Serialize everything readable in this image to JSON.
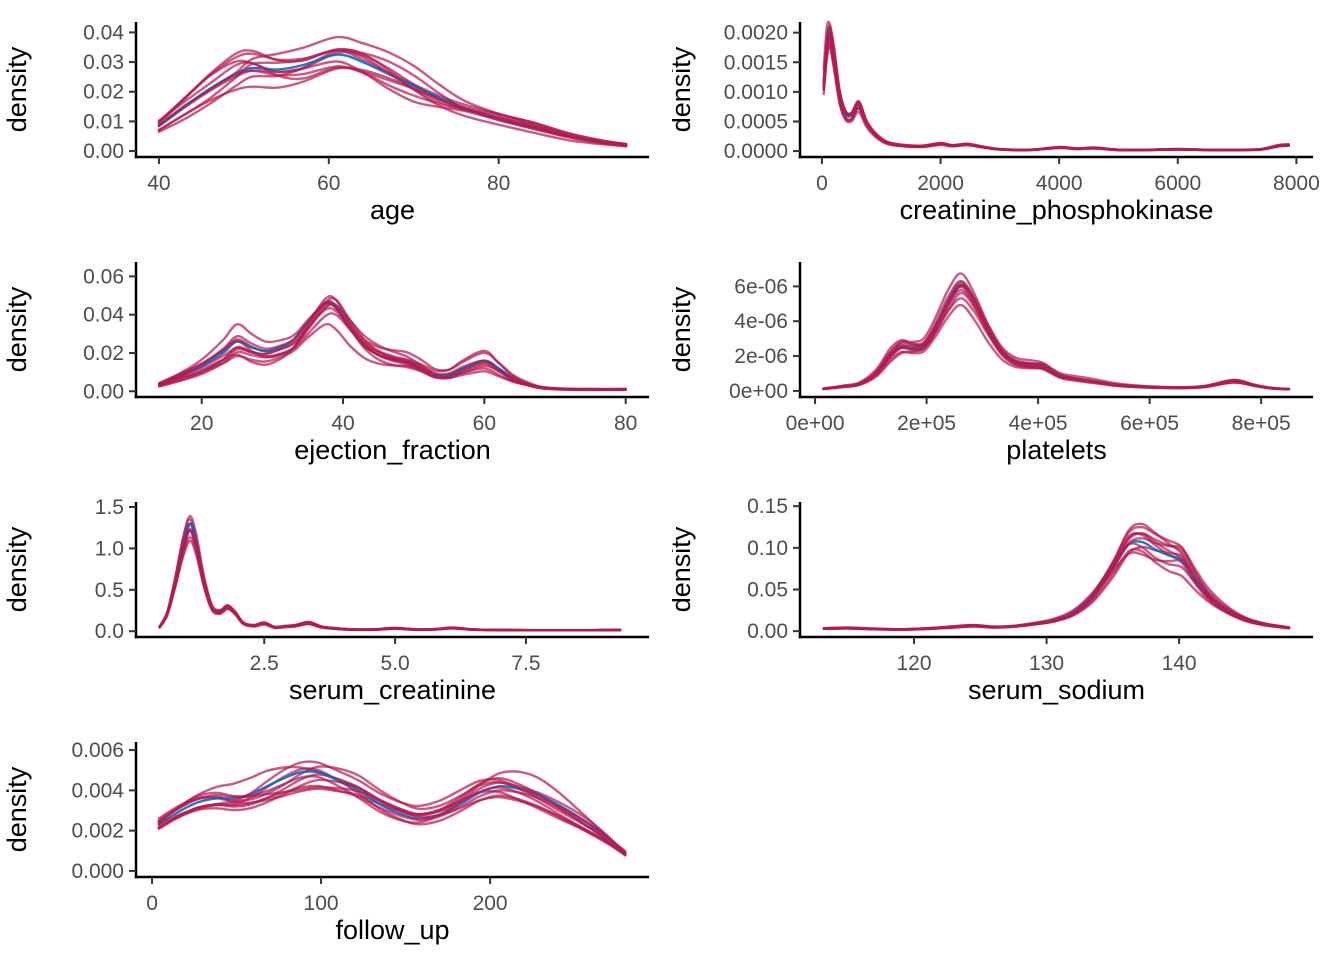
{
  "page": {
    "background": "#ffffff"
  },
  "chart_style": {
    "imputed_color": "#B61A51",
    "observed_color": "#006CC2",
    "curve_alpha": 0.72,
    "observed_alpha": 0.9,
    "curve_width": 2.4,
    "axis_line_color": "#000000",
    "axis_line_width": 2.5,
    "tick_color": "#333333",
    "tick_label_color": "#4D4D4D",
    "axis_title_color": "#000000",
    "tick_label_size": 21,
    "axis_title_size": 27,
    "n_imputed_curves": 10,
    "n_observed_curves": 1,
    "grid": false,
    "legend": "none"
  },
  "chart_data": [
    {
      "type": "line",
      "subtype": "density",
      "xlabel": "age",
      "ylabel": "density",
      "xlim": [
        37.3,
        97.7
      ],
      "ylim": [
        -0.002,
        0.0435
      ],
      "xticks": {
        "values": [
          40,
          60,
          80
        ],
        "labels": [
          "40",
          "60",
          "80"
        ]
      },
      "yticks": {
        "values": [
          0.0,
          0.01,
          0.02,
          0.03,
          0.04
        ],
        "labels": [
          "0.00",
          "0.01",
          "0.02",
          "0.03",
          "0.04"
        ]
      },
      "series_note": "10 imputed density curves (crimson) + 1 observed (blue); peak near age 61, densities 0.024-0.041",
      "base_curve": [
        [
          40,
          0.0085
        ],
        [
          43,
          0.015
        ],
        [
          46,
          0.021
        ],
        [
          49,
          0.026
        ],
        [
          51,
          0.028
        ],
        [
          54,
          0.0275
        ],
        [
          57,
          0.029
        ],
        [
          61,
          0.0325
        ],
        [
          64,
          0.03
        ],
        [
          67,
          0.026
        ],
        [
          70,
          0.022
        ],
        [
          73,
          0.018
        ],
        [
          76,
          0.0145
        ],
        [
          80,
          0.011
        ],
        [
          84,
          0.008
        ],
        [
          88,
          0.005
        ],
        [
          92,
          0.003
        ],
        [
          95,
          0.002
        ]
      ],
      "spread": 0.15,
      "scale_jitter": 0.13,
      "seed": 101
    },
    {
      "type": "line",
      "subtype": "density",
      "xlabel": "creatinine_phosphokinase",
      "ylabel": "density",
      "xlim": [
        -370,
        8280
      ],
      "ylim": [
        -0.0001,
        0.00218
      ],
      "xticks": {
        "values": [
          0,
          2000,
          4000,
          6000,
          8000
        ],
        "labels": [
          "0",
          "2000",
          "4000",
          "6000",
          "8000"
        ]
      },
      "yticks": {
        "values": [
          0.0,
          0.0005,
          0.001,
          0.0015,
          0.002
        ],
        "labels": [
          "0.0000",
          "0.0005",
          "0.0010",
          "0.0015",
          "0.0020"
        ]
      },
      "series_note": "sharp peak ~130 (density up to 0.00207), secondary bump ~620, long right tail with uptick near 7800",
      "base_curve": [
        [
          30,
          0.00115
        ],
        [
          80,
          0.0018
        ],
        [
          130,
          0.00205
        ],
        [
          200,
          0.00165
        ],
        [
          300,
          0.00095
        ],
        [
          400,
          0.00063
        ],
        [
          500,
          0.0006
        ],
        [
          620,
          0.00078
        ],
        [
          750,
          0.00048
        ],
        [
          900,
          0.00028
        ],
        [
          1100,
          0.00014
        ],
        [
          1400,
          9e-05
        ],
        [
          1700,
          8e-05
        ],
        [
          2000,
          0.00012
        ],
        [
          2200,
          9e-05
        ],
        [
          2450,
          0.00011
        ],
        [
          2700,
          7e-05
        ],
        [
          3000,
          3e-05
        ],
        [
          3500,
          2e-05
        ],
        [
          4000,
          6e-05
        ],
        [
          4300,
          4e-05
        ],
        [
          4600,
          5e-05
        ],
        [
          5000,
          2e-05
        ],
        [
          5500,
          2e-05
        ],
        [
          6000,
          3e-05
        ],
        [
          6500,
          2e-05
        ],
        [
          7000,
          2e-05
        ],
        [
          7400,
          3e-05
        ],
        [
          7700,
          9e-05
        ],
        [
          7870,
          0.0001
        ]
      ],
      "spread": 0.09,
      "scale_jitter": 0.09,
      "seed": 202
    },
    {
      "type": "line",
      "subtype": "density",
      "xlabel": "ejection_fraction",
      "ylabel": "density",
      "xlim": [
        10.7,
        83.3
      ],
      "ylim": [
        -0.003,
        0.0675
      ],
      "xticks": {
        "values": [
          20,
          40,
          60,
          80
        ],
        "labels": [
          "20",
          "40",
          "60",
          "80"
        ]
      },
      "yticks": {
        "values": [
          0.0,
          0.02,
          0.04,
          0.06
        ],
        "labels": [
          "0.00",
          "0.02",
          "0.04",
          "0.06"
        ]
      },
      "series_note": "main peak ~38 (0.036-0.064), bump ~25, small peak ~60",
      "base_curve": [
        [
          14,
          0.0035
        ],
        [
          17,
          0.008
        ],
        [
          20,
          0.013
        ],
        [
          23,
          0.02
        ],
        [
          25,
          0.026
        ],
        [
          27,
          0.023
        ],
        [
          29,
          0.021
        ],
        [
          31,
          0.023
        ],
        [
          33,
          0.027
        ],
        [
          35,
          0.036
        ],
        [
          37.5,
          0.046
        ],
        [
          39,
          0.044
        ],
        [
          41,
          0.033
        ],
        [
          43,
          0.024
        ],
        [
          45,
          0.019
        ],
        [
          47,
          0.0165
        ],
        [
          49,
          0.015
        ],
        [
          51,
          0.012
        ],
        [
          53,
          0.0085
        ],
        [
          55,
          0.0085
        ],
        [
          57,
          0.012
        ],
        [
          60,
          0.016
        ],
        [
          62,
          0.012
        ],
        [
          64,
          0.007
        ],
        [
          66,
          0.004
        ],
        [
          68,
          0.002
        ],
        [
          71,
          0.0012
        ],
        [
          75,
          0.001
        ],
        [
          80,
          0.001
        ]
      ],
      "spread": 0.17,
      "scale_jitter": 0.15,
      "seed": 303
    },
    {
      "type": "line",
      "subtype": "density",
      "xlabel": "platelets",
      "ylabel": "density",
      "xlim": [
        -27000,
        893000
      ],
      "ylim": [
        -3.5e-07,
        7.4e-06
      ],
      "xticks": {
        "values": [
          0,
          200000,
          400000,
          600000,
          800000
        ],
        "labels": [
          "0e+00",
          "2e+05",
          "4e+05",
          "6e+05",
          "8e+05"
        ]
      },
      "yticks": {
        "values": [
          0,
          2e-06,
          4e-06,
          6e-06
        ],
        "labels": [
          "0e+00",
          "2e-06",
          "4e-06",
          "6e-06"
        ]
      },
      "series_note": "peak ~2.6e5 (5e-06 to 7e-06), shoulder ~1.5e5, small bump ~7.5e5",
      "base_curve": [
        [
          15000,
          1.2e-07
        ],
        [
          50000,
          2.5e-07
        ],
        [
          80000,
          4e-07
        ],
        [
          110000,
          1e-06
        ],
        [
          135000,
          2e-06
        ],
        [
          155000,
          2.5e-06
        ],
        [
          175000,
          2.45e-06
        ],
        [
          195000,
          2.6e-06
        ],
        [
          215000,
          3.6e-06
        ],
        [
          240000,
          5.2e-06
        ],
        [
          262000,
          6.1e-06
        ],
        [
          285000,
          5.2e-06
        ],
        [
          310000,
          3.6e-06
        ],
        [
          335000,
          2.3e-06
        ],
        [
          360000,
          1.7e-06
        ],
        [
          390000,
          1.55e-06
        ],
        [
          410000,
          1.45e-06
        ],
        [
          440000,
          9e-07
        ],
        [
          470000,
          7e-07
        ],
        [
          500000,
          5.5e-07
        ],
        [
          540000,
          3.5e-07
        ],
        [
          580000,
          2.5e-07
        ],
        [
          620000,
          2e-07
        ],
        [
          660000,
          1.8e-07
        ],
        [
          700000,
          2.5e-07
        ],
        [
          740000,
          5e-07
        ],
        [
          760000,
          5.2e-07
        ],
        [
          790000,
          3e-07
        ],
        [
          820000,
          1.5e-07
        ],
        [
          850000,
          1e-07
        ]
      ],
      "spread": 0.11,
      "scale_jitter": 0.1,
      "seed": 404
    },
    {
      "type": "line",
      "subtype": "density",
      "xlabel": "serum_creatinine",
      "ylabel": "density",
      "xlim": [
        0.05,
        9.85
      ],
      "ylim": [
        -0.07,
        1.56
      ],
      "xticks": {
        "values": [
          2.5,
          5.0,
          7.5
        ],
        "labels": [
          "2.5",
          "5.0",
          "7.5"
        ]
      },
      "yticks": {
        "values": [
          0.0,
          0.5,
          1.0,
          1.5
        ],
        "labels": [
          "0.0",
          "0.5",
          "1.0",
          "1.5"
        ]
      },
      "series_note": "sharp peak ~1.1 (1.1-1.48), bump ~1.8 (~0.3), small bumps at 2.5, 3.4, 5.0, 6.1",
      "base_curve": [
        [
          0.5,
          0.05
        ],
        [
          0.65,
          0.22
        ],
        [
          0.8,
          0.6
        ],
        [
          0.95,
          1.05
        ],
        [
          1.08,
          1.3
        ],
        [
          1.2,
          1.1
        ],
        [
          1.35,
          0.62
        ],
        [
          1.5,
          0.3
        ],
        [
          1.65,
          0.24
        ],
        [
          1.8,
          0.3
        ],
        [
          1.95,
          0.22
        ],
        [
          2.1,
          0.1
        ],
        [
          2.3,
          0.07
        ],
        [
          2.5,
          0.1
        ],
        [
          2.7,
          0.05
        ],
        [
          2.9,
          0.06
        ],
        [
          3.1,
          0.07
        ],
        [
          3.35,
          0.1
        ],
        [
          3.6,
          0.05
        ],
        [
          3.9,
          0.03
        ],
        [
          4.2,
          0.02
        ],
        [
          4.6,
          0.02
        ],
        [
          5.0,
          0.035
        ],
        [
          5.4,
          0.02
        ],
        [
          5.8,
          0.025
        ],
        [
          6.1,
          0.04
        ],
        [
          6.5,
          0.02
        ],
        [
          7.0,
          0.015
        ],
        [
          7.6,
          0.012
        ],
        [
          8.4,
          0.012
        ],
        [
          9.3,
          0.015
        ]
      ],
      "spread": 0.09,
      "scale_jitter": 0.09,
      "seed": 505
    },
    {
      "type": "line",
      "subtype": "density",
      "xlabel": "serum_sodium",
      "ylabel": "density",
      "xlim": [
        111.4,
        150.1
      ],
      "ylim": [
        -0.007,
        0.155
      ],
      "xticks": {
        "values": [
          120,
          130,
          140
        ],
        "labels": [
          "120",
          "130",
          "140"
        ]
      },
      "yticks": {
        "values": [
          0.0,
          0.05,
          0.1,
          0.15
        ],
        "labels": [
          "0.00",
          "0.05",
          "0.10",
          "0.15"
        ]
      },
      "series_note": "peak ~136 (0.10-0.147) with shoulder ~140, flat left tail from 113",
      "base_curve": [
        [
          113.2,
          0.003
        ],
        [
          115,
          0.0035
        ],
        [
          117,
          0.0025
        ],
        [
          119,
          0.002
        ],
        [
          121,
          0.003
        ],
        [
          123,
          0.005
        ],
        [
          124.5,
          0.0065
        ],
        [
          126,
          0.005
        ],
        [
          127.5,
          0.006
        ],
        [
          129,
          0.009
        ],
        [
          130.5,
          0.013
        ],
        [
          132,
          0.022
        ],
        [
          133.5,
          0.042
        ],
        [
          135,
          0.075
        ],
        [
          136.2,
          0.104
        ],
        [
          137.2,
          0.107
        ],
        [
          138.2,
          0.098
        ],
        [
          139.2,
          0.091
        ],
        [
          140.2,
          0.085
        ],
        [
          141.2,
          0.062
        ],
        [
          142.2,
          0.042
        ],
        [
          143.5,
          0.026
        ],
        [
          145,
          0.014
        ],
        [
          146.5,
          0.008
        ],
        [
          148.3,
          0.004
        ]
      ],
      "spread": 0.11,
      "scale_jitter": 0.1,
      "seed": 606
    },
    {
      "type": "line",
      "subtype": "density",
      "xlabel": "follow_up",
      "ylabel": "density",
      "xlim": [
        -9.5,
        294
      ],
      "ylim": [
        -0.0003,
        0.0064
      ],
      "xticks": {
        "values": [
          0,
          100,
          200
        ],
        "labels": [
          "0",
          "100",
          "200"
        ]
      },
      "yticks": {
        "values": [
          0.0,
          0.002,
          0.004,
          0.006
        ],
        "labels": [
          "0.000",
          "0.002",
          "0.004",
          "0.006"
        ]
      },
      "series_note": "bimodal: peak ~90 (0.0047-0.006), trough ~155, second peak ~205 (~0.0042), falling to ~0.0008 at 280",
      "base_curve": [
        [
          4,
          0.0023
        ],
        [
          15,
          0.0029
        ],
        [
          27,
          0.0034
        ],
        [
          38,
          0.0036
        ],
        [
          48,
          0.0036
        ],
        [
          58,
          0.0038
        ],
        [
          68,
          0.0042
        ],
        [
          78,
          0.0046
        ],
        [
          88,
          0.0049
        ],
        [
          98,
          0.0049
        ],
        [
          110,
          0.0045
        ],
        [
          122,
          0.004
        ],
        [
          135,
          0.0033
        ],
        [
          148,
          0.0028
        ],
        [
          158,
          0.0026
        ],
        [
          170,
          0.0028
        ],
        [
          182,
          0.0033
        ],
        [
          194,
          0.0039
        ],
        [
          205,
          0.0042
        ],
        [
          216,
          0.0041
        ],
        [
          228,
          0.0038
        ],
        [
          240,
          0.0033
        ],
        [
          252,
          0.0027
        ],
        [
          264,
          0.002
        ],
        [
          273,
          0.0014
        ],
        [
          280,
          0.0009
        ]
      ],
      "spread": 0.11,
      "scale_jitter": 0.1,
      "seed": 707
    }
  ]
}
